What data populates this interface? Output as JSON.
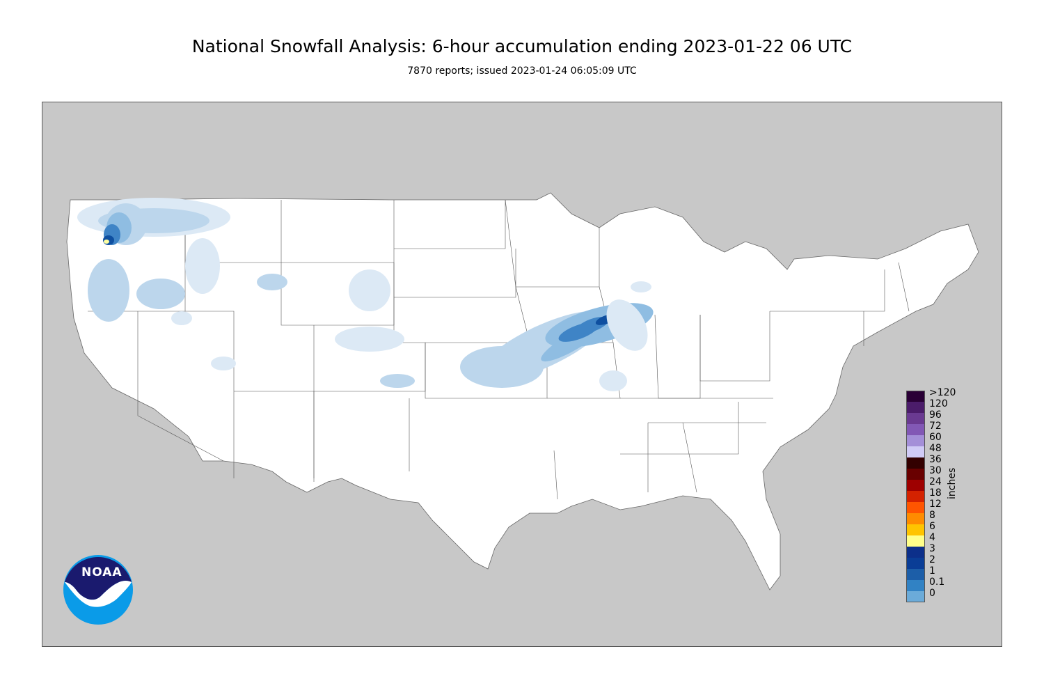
{
  "header": {
    "title": "National Snowfall Analysis: 6-hour accumulation ending 2023-01-22 06 UTC",
    "subtitle": "7870 reports; issued 2023-01-24 06:05:09 UTC"
  },
  "legend": {
    "unit": "inches",
    "levels": [
      {
        "label": ">120",
        "color": "#2a0036"
      },
      {
        "label": "120",
        "color": "#4b1c6a"
      },
      {
        "label": "96",
        "color": "#6a3a91"
      },
      {
        "label": "72",
        "color": "#8258b5"
      },
      {
        "label": "60",
        "color": "#a48fd8"
      },
      {
        "label": "48",
        "color": "#d0cbf6"
      },
      {
        "label": "36",
        "color": "#330000"
      },
      {
        "label": "30",
        "color": "#690000"
      },
      {
        "label": "24",
        "color": "#9e0000"
      },
      {
        "label": "18",
        "color": "#d42200"
      },
      {
        "label": "12",
        "color": "#ff5500"
      },
      {
        "label": "8",
        "color": "#ff8c00"
      },
      {
        "label": "6",
        "color": "#ffc400"
      },
      {
        "label": "4",
        "color": "#ffff8a"
      },
      {
        "label": "3",
        "color": "#0c2f8a"
      },
      {
        "label": "2",
        "color": "#0a3d96"
      },
      {
        "label": "1",
        "color": "#1c5ea8"
      },
      {
        "label": "0.1",
        "color": "#3182c4"
      },
      {
        "label": "0",
        "color": "#6babd9"
      }
    ]
  },
  "colors": {
    "land": "#ffffff",
    "background": "#c8c8c8",
    "snow_trace": "#dce9f5",
    "snow_light": "#bcd6ec",
    "snow_moderate": "#8fbde2",
    "snow_heavy": "#3f84c6",
    "snow_very_heavy": "#0e4fa0",
    "snow_max": "#ffffa0"
  },
  "logo": {
    "text": "NOAA"
  },
  "icons": {
    "logo": "noaa-logo-icon"
  }
}
